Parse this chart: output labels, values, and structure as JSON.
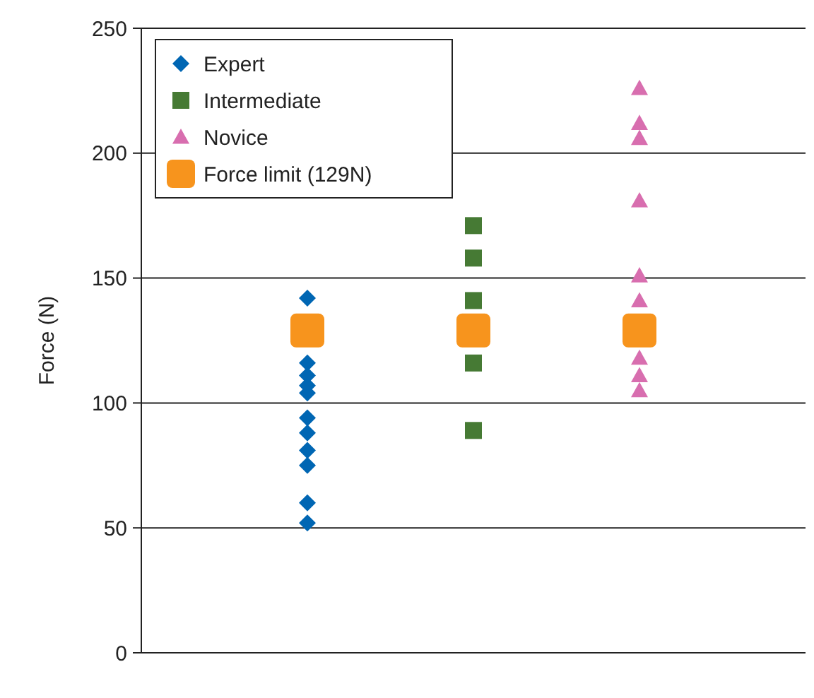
{
  "chart_data": {
    "type": "scatter",
    "ylabel": "Force (N)",
    "categories": [
      null,
      null,
      null
    ],
    "ylim": [
      0,
      250
    ],
    "yticks": [
      0,
      50,
      100,
      150,
      200,
      250
    ],
    "grid": "y",
    "tick_labels": "y",
    "legend": "top left",
    "series": [
      {
        "name": "Expert",
        "color": "#0066b3",
        "marker": "diamond",
        "values": [
          142,
          null,
          null
        ]
      },
      {
        "color": "#0066b3",
        "marker": "diamond",
        "values": [
          116,
          null,
          null
        ]
      },
      {
        "color": "#0066b3",
        "marker": "diamond",
        "values": [
          111,
          null,
          null
        ]
      },
      {
        "color": "#0066b3",
        "marker": "diamond",
        "values": [
          107,
          null,
          null
        ]
      },
      {
        "color": "#0066b3",
        "marker": "diamond",
        "values": [
          104,
          null,
          null
        ]
      },
      {
        "color": "#0066b3",
        "marker": "diamond",
        "values": [
          94,
          null,
          null
        ]
      },
      {
        "color": "#0066b3",
        "marker": "diamond",
        "values": [
          88,
          null,
          null
        ]
      },
      {
        "color": "#0066b3",
        "marker": "diamond",
        "values": [
          81,
          null,
          null
        ]
      },
      {
        "color": "#0066b3",
        "marker": "diamond",
        "values": [
          75,
          null,
          null
        ]
      },
      {
        "color": "#0066b3",
        "marker": "diamond",
        "values": [
          60,
          null,
          null
        ]
      },
      {
        "color": "#0066b3",
        "marker": "diamond",
        "values": [
          52,
          null,
          null
        ]
      },
      {
        "name": "Intermediate",
        "color": "#467a34",
        "marker": "square",
        "values": [
          null,
          171,
          null
        ]
      },
      {
        "color": "#467a34",
        "marker": "square",
        "values": [
          null,
          158,
          null
        ]
      },
      {
        "color": "#467a34",
        "marker": "square",
        "values": [
          null,
          141,
          null
        ]
      },
      {
        "color": "#467a34",
        "marker": "square",
        "values": [
          null,
          116,
          null
        ]
      },
      {
        "color": "#467a34",
        "marker": "square",
        "values": [
          null,
          89,
          null
        ]
      },
      {
        "name": "Novice",
        "color": "#d86eaf",
        "marker": "triangle",
        "values": [
          null,
          null,
          226
        ]
      },
      {
        "color": "#d86eaf",
        "marker": "triangle",
        "values": [
          null,
          null,
          212
        ]
      },
      {
        "color": "#d86eaf",
        "marker": "triangle",
        "values": [
          null,
          null,
          206
        ]
      },
      {
        "color": "#d86eaf",
        "marker": "triangle",
        "values": [
          null,
          null,
          181
        ]
      },
      {
        "color": "#d86eaf",
        "marker": "triangle",
        "values": [
          null,
          null,
          151
        ]
      },
      {
        "color": "#d86eaf",
        "marker": "triangle",
        "values": [
          null,
          null,
          141
        ]
      },
      {
        "color": "#d86eaf",
        "marker": "triangle",
        "values": [
          null,
          null,
          118
        ]
      },
      {
        "color": "#d86eaf",
        "marker": "triangle",
        "values": [
          null,
          null,
          111
        ]
      },
      {
        "color": "#d86eaf",
        "marker": "triangle",
        "values": [
          null,
          null,
          105
        ]
      },
      {
        "name": "Force limit (129N)",
        "color": "#f7941d",
        "marker": "square",
        "values": [
          129,
          129,
          129
        ]
      }
    ]
  }
}
